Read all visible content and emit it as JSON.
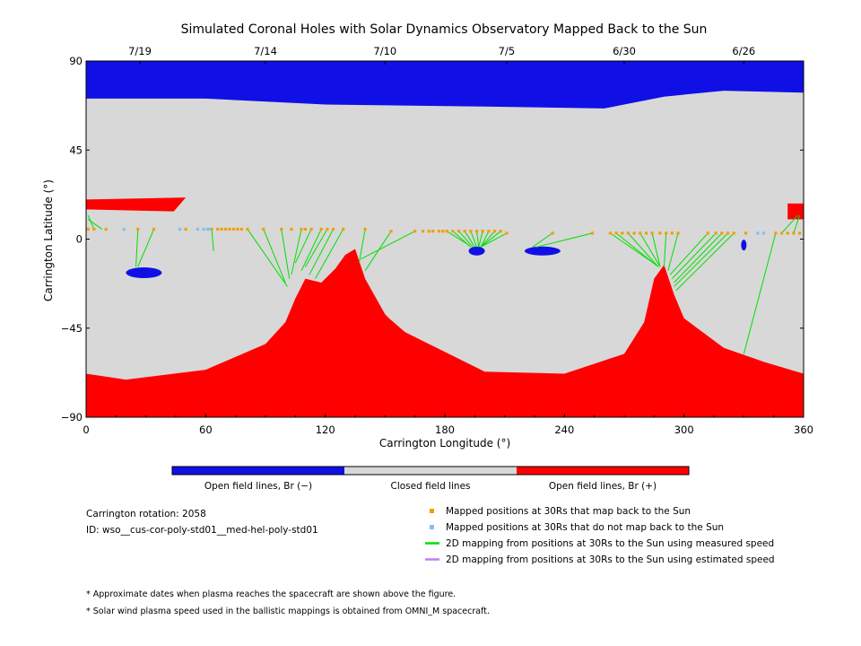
{
  "chart_data": {
    "type": "scatter",
    "title": "Simulated Coronal Holes with Solar Dynamics Observatory Mapped Back to the Sun",
    "xlabel": "Carrington Longitude (°)",
    "ylabel": "Carrington Latitude (°)",
    "xlim": [
      0,
      360
    ],
    "ylim": [
      -90,
      90
    ],
    "x_ticks": [
      "0",
      "60",
      "120",
      "180",
      "240",
      "300",
      "360"
    ],
    "y_ticks": [
      "90",
      "45",
      "0",
      "-45",
      "-90"
    ],
    "top_axis": {
      "labels": [
        "7/19",
        "7/14",
        "7/10",
        "7/5",
        "6/30",
        "6/26"
      ],
      "longitudes": [
        27,
        90,
        150,
        211,
        270,
        330
      ]
    },
    "colorbar": [
      {
        "label": "Open field lines, Br (−)",
        "color": "#1010e6"
      },
      {
        "label": "Closed field lines",
        "color": "#d8d8d8"
      },
      {
        "label": "Open field lines, Br (+)",
        "color": "#ff0000"
      }
    ],
    "regions": {
      "north_negative_boundary": {
        "lon": [
          0,
          60,
          120,
          200,
          260,
          290,
          320,
          360
        ],
        "lat": [
          71,
          71,
          68,
          67,
          66,
          72,
          75,
          74
        ]
      },
      "south_positive_boundary": {
        "lon": [
          0,
          20,
          60,
          90,
          100,
          105,
          110,
          118,
          125,
          130,
          135,
          140,
          150,
          152,
          160,
          200,
          240,
          270,
          280,
          285,
          290,
          295,
          300,
          320,
          340,
          360
        ],
        "lat": [
          -68,
          -71,
          -66,
          -53,
          -42,
          -30,
          -20,
          -22,
          -15,
          -8,
          -5,
          -20,
          -38,
          -40,
          -47,
          -67,
          -68,
          -58,
          -42,
          -20,
          -13,
          -28,
          -40,
          -55,
          -62,
          -68
        ]
      },
      "positive_patches": [
        {
          "lon": [
            0,
            50
          ],
          "lat": [
            20,
            15
          ],
          "note": "northern red band"
        },
        {
          "lon": [
            352,
            360
          ],
          "lat": [
            18,
            10
          ],
          "note": "red patch at right edge"
        }
      ],
      "negative_patches": [
        {
          "lon": 29,
          "lat": -17
        },
        {
          "lon": 196,
          "lat": -6
        },
        {
          "lon": 229,
          "lat": -6
        },
        {
          "lon": 330,
          "lat": -3
        }
      ]
    },
    "series": [
      {
        "name": "Mapped positions at 30Rs that map back to the Sun",
        "color": "#f0a000",
        "x": [
          1,
          4,
          10,
          26,
          34,
          50,
          63,
          66,
          68,
          70,
          72,
          74,
          76,
          78,
          81,
          89,
          98,
          103,
          108,
          110,
          113,
          118,
          121,
          124,
          129,
          140,
          153,
          165,
          169,
          172,
          174,
          177,
          179,
          181,
          184,
          187,
          190,
          193,
          196,
          199,
          202,
          205,
          208,
          211,
          234,
          254,
          263,
          266,
          269,
          272,
          275,
          278,
          281,
          284,
          288,
          291,
          294,
          297,
          312,
          316,
          319,
          322,
          325,
          331,
          346,
          349,
          352,
          355,
          358
        ],
        "y": [
          5,
          5,
          5,
          5,
          5,
          5,
          5,
          5,
          5,
          5,
          5,
          5,
          5,
          5,
          5,
          5,
          5,
          5,
          5,
          5,
          5,
          5,
          5,
          5,
          5,
          5,
          4,
          4,
          4,
          4,
          4,
          4,
          4,
          4,
          4,
          4,
          4,
          4,
          4,
          4,
          4,
          4,
          4,
          3,
          3,
          3,
          3,
          3,
          3,
          3,
          3,
          3,
          3,
          3,
          3,
          3,
          3,
          3,
          3,
          3,
          3,
          3,
          3,
          3,
          3,
          3,
          3,
          3,
          3
        ]
      },
      {
        "name": "Mapped positions at 30Rs that do not map back to the Sun",
        "color": "#80c0f0",
        "x": [
          19,
          47,
          56,
          59,
          61,
          62,
          337,
          340
        ],
        "y": [
          5,
          5,
          5,
          5,
          5,
          5,
          3,
          3
        ]
      },
      {
        "name": "2D mapping from positions at 30Rs to the Sun using measured speed",
        "color": "#00e000",
        "segments": [
          {
            "from": [
              1,
              10
            ],
            "to": [
              8,
              5
            ]
          },
          {
            "from": [
              1,
              12
            ],
            "to": [
              4,
              5
            ]
          },
          {
            "from": [
              25,
              -14
            ],
            "to": [
              26,
              5
            ]
          },
          {
            "from": [
              26,
              -14
            ],
            "to": [
              34,
              5
            ]
          },
          {
            "from": [
              64,
              -6
            ],
            "to": [
              63,
              5
            ]
          },
          {
            "from": [
              100,
              -22
            ],
            "to": [
              89,
              5
            ]
          },
          {
            "from": [
              101,
              -24
            ],
            "to": [
              81,
              5
            ]
          },
          {
            "from": [
              102,
              -20
            ],
            "to": [
              98,
              5
            ]
          },
          {
            "from": [
              103,
              -18
            ],
            "to": [
              108,
              5
            ]
          },
          {
            "from": [
              105,
              -12
            ],
            "to": [
              113,
              5
            ]
          },
          {
            "from": [
              110,
              -14
            ],
            "to": [
              121,
              5
            ]
          },
          {
            "from": [
              112,
              -18
            ],
            "to": [
              124,
              5
            ]
          },
          {
            "from": [
              115,
              -20
            ],
            "to": [
              129,
              5
            ]
          },
          {
            "from": [
              108,
              -16
            ],
            "to": [
              118,
              5
            ]
          },
          {
            "from": [
              137,
              -12
            ],
            "to": [
              140,
              5
            ]
          },
          {
            "from": [
              140,
              -16
            ],
            "to": [
              153,
              4
            ]
          },
          {
            "from": [
              138,
              -10
            ],
            "to": [
              165,
              4
            ]
          },
          {
            "from": [
              192,
              -3
            ],
            "to": [
              181,
              4
            ]
          },
          {
            "from": [
              193,
              -4
            ],
            "to": [
              184,
              4
            ]
          },
          {
            "from": [
              194,
              -4
            ],
            "to": [
              187,
              4
            ]
          },
          {
            "from": [
              195,
              -4
            ],
            "to": [
              190,
              4
            ]
          },
          {
            "from": [
              196,
              -4
            ],
            "to": [
              193,
              4
            ]
          },
          {
            "from": [
              197,
              -4
            ],
            "to": [
              196,
              4
            ]
          },
          {
            "from": [
              197,
              -4
            ],
            "to": [
              199,
              4
            ]
          },
          {
            "from": [
              198,
              -4
            ],
            "to": [
              202,
              4
            ]
          },
          {
            "from": [
              198,
              -4
            ],
            "to": [
              205,
              4
            ]
          },
          {
            "from": [
              198,
              -4
            ],
            "to": [
              208,
              4
            ]
          },
          {
            "from": [
              198,
              -4
            ],
            "to": [
              211,
              3
            ]
          },
          {
            "from": [
              224,
              -4
            ],
            "to": [
              234,
              3
            ]
          },
          {
            "from": [
              226,
              -4
            ],
            "to": [
              254,
              3
            ]
          },
          {
            "from": [
              286,
              -13
            ],
            "to": [
              263,
              3
            ]
          },
          {
            "from": [
              287,
              -14
            ],
            "to": [
              266,
              3
            ]
          },
          {
            "from": [
              287,
              -14
            ],
            "to": [
              272,
              3
            ]
          },
          {
            "from": [
              288,
              -14
            ],
            "to": [
              278,
              3
            ]
          },
          {
            "from": [
              288,
              -14
            ],
            "to": [
              284,
              3
            ]
          },
          {
            "from": [
              290,
              -14
            ],
            "to": [
              291,
              3
            ]
          },
          {
            "from": [
              292,
              -16
            ],
            "to": [
              297,
              3
            ]
          },
          {
            "from": [
              293,
              -18
            ],
            "to": [
              312,
              3
            ]
          },
          {
            "from": [
              294,
              -20
            ],
            "to": [
              316,
              3
            ]
          },
          {
            "from": [
              295,
              -22
            ],
            "to": [
              319,
              3
            ]
          },
          {
            "from": [
              295,
              -24
            ],
            "to": [
              322,
              3
            ]
          },
          {
            "from": [
              296,
              -26
            ],
            "to": [
              325,
              3
            ]
          },
          {
            "from": [
              330,
              -58
            ],
            "to": [
              346,
              3
            ]
          },
          {
            "from": [
              357,
              12
            ],
            "to": [
              349,
              3
            ]
          },
          {
            "from": [
              358,
              12
            ],
            "to": [
              355,
              3
            ]
          }
        ]
      },
      {
        "name": "2D mapping from positions at 30Rs to the Sun using estimated speed",
        "color": "#c080f0",
        "segments": []
      }
    ],
    "info": {
      "rotation": "Carrington rotation: 2058",
      "id": "ID: wso__cus-cor-poly-std01__med-hel-poly-std01"
    },
    "footnotes": [
      "* Approximate dates when plasma reaches the spacecraft are shown above the figure.",
      "* Solar wind plasma speed used in the ballistic mappings is obtained from OMNI_M spacecraft."
    ]
  }
}
